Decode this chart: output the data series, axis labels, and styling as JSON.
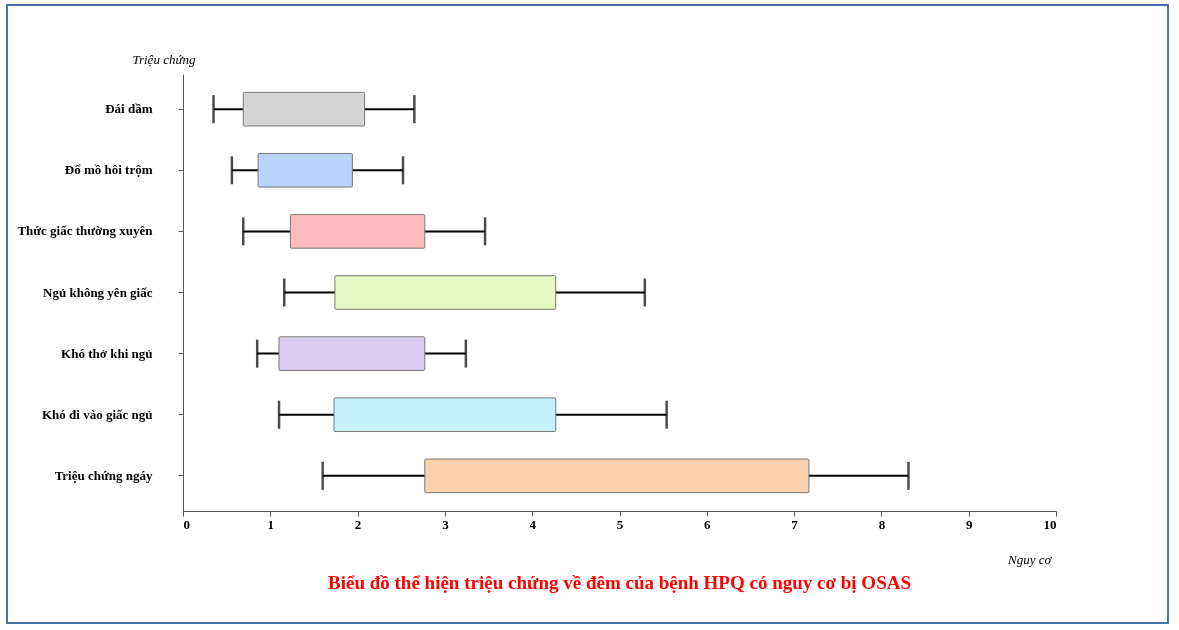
{
  "chart_data": {
    "type": "bar",
    "orientation": "horizontal",
    "title": "Biểu đồ thể hiện triệu chứng về đêm của bệnh HPQ có nguy cơ bị OSAS",
    "xlabel": "Nguy cơ",
    "ylabel": "Triệu chứng",
    "categories": [
      "Đái dầm",
      "Đổ mồ hôi trộm",
      "Thức giấc thường xuyên",
      "Ngủ không yên giấc",
      "Khó thở khi ngủ",
      "Khó đi vào giấc ngủ",
      "Triệu chứng ngáy"
    ],
    "base": [
      0.69,
      0.86,
      1.23,
      1.74,
      1.1,
      1.73,
      2.77
    ],
    "values": [
      1.39,
      1.08,
      1.54,
      2.53,
      1.67,
      2.54,
      4.4
    ],
    "errors": [
      [
        0.35,
        2.65
      ],
      [
        0.56,
        2.52
      ],
      [
        0.69,
        3.46
      ],
      [
        1.16,
        5.29
      ],
      [
        0.85,
        3.24
      ],
      [
        1.1,
        5.54
      ],
      [
        1.6,
        8.31
      ]
    ],
    "colors": [
      "#d4d4d4",
      "#b9d4fb",
      "#fdbcbc",
      "#e6f9c4",
      "#dacdf1",
      "#c7f2fb",
      "#fdd1ab"
    ],
    "xlim": [
      0,
      10
    ],
    "xticks": [
      0,
      1,
      2,
      3,
      4,
      5,
      6,
      7,
      8,
      9,
      10
    ],
    "grid": false
  }
}
